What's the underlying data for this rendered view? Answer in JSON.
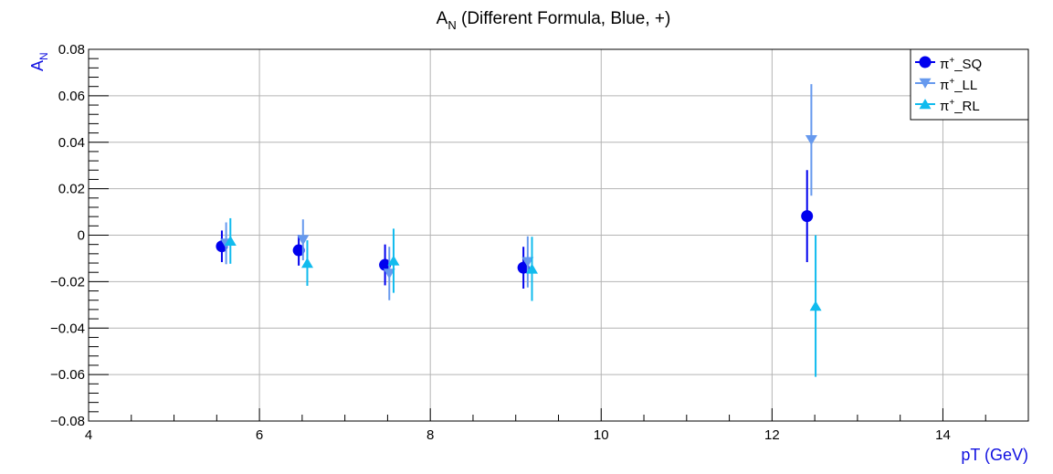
{
  "chart_data": {
    "type": "scatter",
    "title": {
      "main": "A",
      "sub": "N",
      "rest": " (Different Formula, Blue, +)"
    },
    "xlabel": "pT (GeV)",
    "ylabel": {
      "main": "A",
      "sub": "N"
    },
    "xlim": [
      4,
      15
    ],
    "ylim": [
      -0.08,
      0.08
    ],
    "x_major_ticks": [
      4,
      6,
      8,
      10,
      12,
      14
    ],
    "x_tick_labels": [
      "4",
      "6",
      "8",
      "10",
      "12",
      "14"
    ],
    "y_major_ticks": [
      -0.08,
      -0.06,
      -0.04,
      -0.02,
      0,
      0.02,
      0.04,
      0.06,
      0.08
    ],
    "y_tick_labels": [
      "−0.08",
      "−0.06",
      "−0.04",
      "−0.02",
      "0",
      "0.02",
      "0.04",
      "0.06",
      "0.08"
    ],
    "grid": true,
    "legend_position": "top-right",
    "axis_label_color": "#1010e0",
    "series": [
      {
        "name": "π⁺_SQ",
        "label_parts": {
          "base": "π",
          "sup": "+",
          "suffix": "_SQ"
        },
        "marker": "circle",
        "color": "#0000ee",
        "points": [
          {
            "x": 5.56,
            "y": -0.0048,
            "err": 0.0068
          },
          {
            "x": 6.46,
            "y": -0.0065,
            "err": 0.0066
          },
          {
            "x": 7.47,
            "y": -0.0128,
            "err": 0.0088
          },
          {
            "x": 9.09,
            "y": -0.014,
            "err": 0.009
          },
          {
            "x": 12.41,
            "y": 0.0082,
            "err": 0.0198
          }
        ]
      },
      {
        "name": "π⁺_LL",
        "label_parts": {
          "base": "π",
          "sup": "+",
          "suffix": "_LL"
        },
        "marker": "triangle-down",
        "color": "#6699ee",
        "points": [
          {
            "x": 5.61,
            "y": -0.0035,
            "err": 0.009
          },
          {
            "x": 6.51,
            "y": -0.002,
            "err": 0.0088
          },
          {
            "x": 7.52,
            "y": -0.0165,
            "err": 0.0115
          },
          {
            "x": 9.14,
            "y": -0.0115,
            "err": 0.011
          },
          {
            "x": 12.46,
            "y": 0.041,
            "err": 0.024
          }
        ]
      },
      {
        "name": "π⁺_RL",
        "label_parts": {
          "base": "π",
          "sup": "+",
          "suffix": "_RL"
        },
        "marker": "triangle-up",
        "color": "#11bbee",
        "points": [
          {
            "x": 5.66,
            "y": -0.0025,
            "err": 0.0098
          },
          {
            "x": 6.56,
            "y": -0.012,
            "err": 0.0098
          },
          {
            "x": 7.57,
            "y": -0.011,
            "err": 0.0138
          },
          {
            "x": 9.19,
            "y": -0.0145,
            "err": 0.0138
          },
          {
            "x": 12.51,
            "y": -0.0305,
            "err": 0.0305
          }
        ]
      }
    ]
  }
}
